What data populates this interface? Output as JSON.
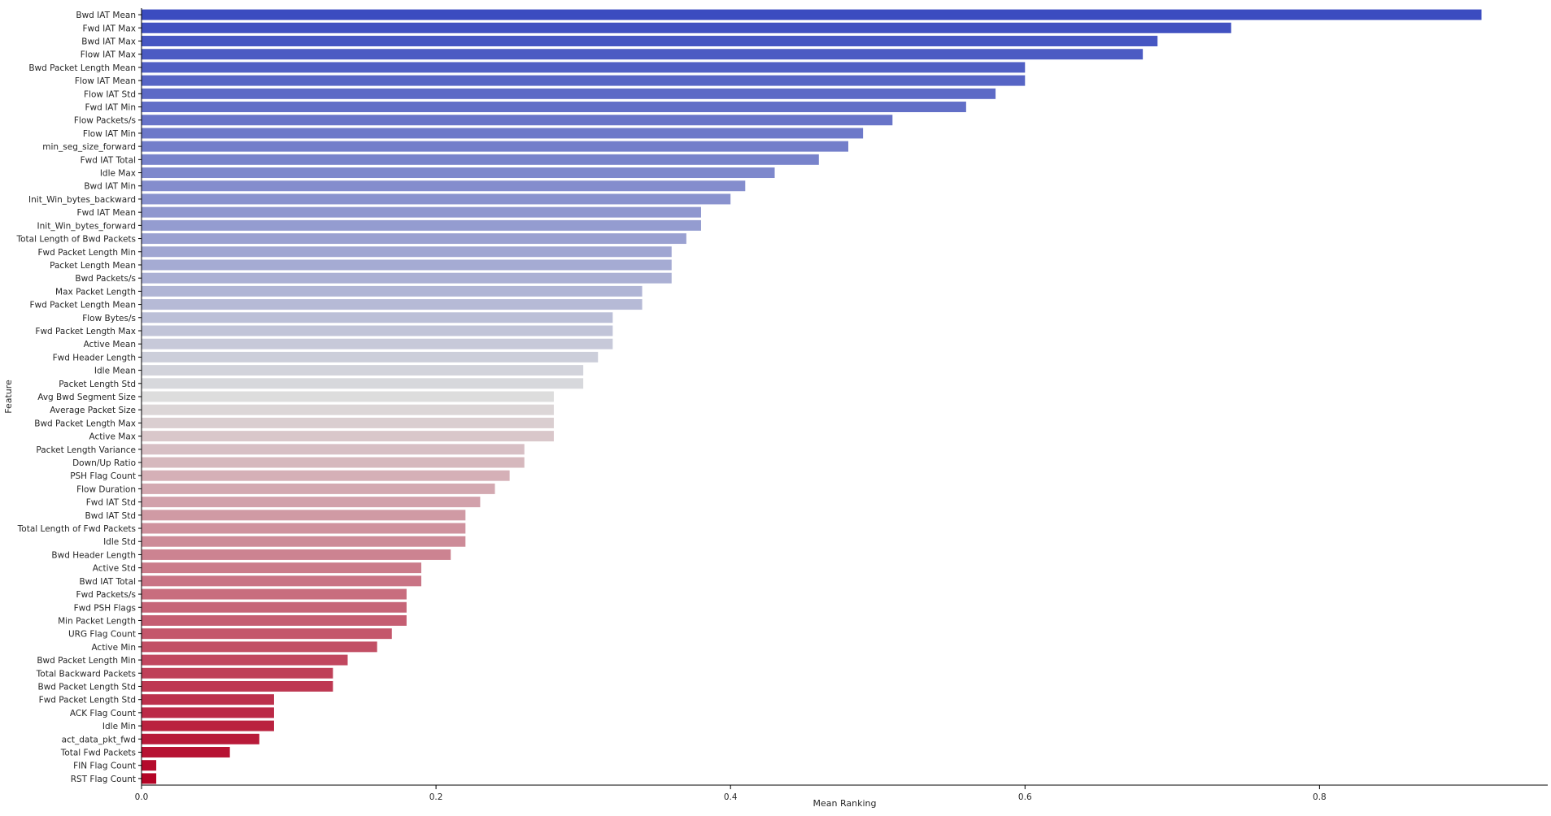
{
  "chart_data": {
    "type": "bar",
    "orientation": "horizontal",
    "xlabel": "Mean Ranking",
    "ylabel": "Feature",
    "xlim": [
      0,
      0.955
    ],
    "xticks": [
      0,
      0.2,
      0.4,
      0.6,
      0.8
    ],
    "xtick_labels": [
      "0.0",
      "0.2",
      "0.4",
      "0.6",
      "0.8"
    ],
    "grid": false,
    "palette": "coolwarm",
    "palette_start": "#3b4cc0",
    "palette_mid": "#dddddd",
    "palette_end": "#b40426",
    "categories": [
      "Bwd IAT Mean",
      "Fwd IAT Max",
      "Bwd IAT Max",
      "Flow IAT Max",
      "Bwd Packet Length Mean",
      "Flow IAT Mean",
      "Flow IAT Std",
      "Fwd IAT Min",
      "Flow Packets/s",
      "Flow IAT Min",
      "min_seg_size_forward",
      "Fwd IAT Total",
      "Idle Max",
      "Bwd IAT Min",
      "Init_Win_bytes_backward",
      "Fwd IAT Mean",
      "Init_Win_bytes_forward",
      "Total Length of Bwd Packets",
      "Fwd Packet Length Min",
      "Packet Length Mean",
      "Bwd Packets/s",
      "Max Packet Length",
      "Fwd Packet Length Mean",
      "Flow Bytes/s",
      "Fwd Packet Length Max",
      "Active Mean",
      "Fwd Header Length",
      "Idle Mean",
      "Packet Length Std",
      "Avg Bwd Segment Size",
      "Average Packet Size",
      "Bwd Packet Length Max",
      "Active Max",
      "Packet Length Variance",
      "Down/Up Ratio",
      "PSH Flag Count",
      "Flow Duration",
      "Fwd IAT Std",
      "Bwd IAT Std",
      "Total Length of Fwd Packets",
      "Idle Std",
      "Bwd Header Length",
      "Active Std",
      "Bwd IAT Total",
      "Fwd Packets/s",
      "Fwd PSH Flags",
      "Min Packet Length",
      "URG Flag Count",
      "Active Min",
      "Bwd Packet Length Min",
      "Total Backward Packets",
      "Bwd Packet Length Std",
      "Fwd Packet Length Std",
      "ACK Flag Count",
      "Idle Min",
      "act_data_pkt_fwd",
      "Total Fwd Packets",
      "FIN Flag Count",
      "RST Flag Count"
    ],
    "values": [
      0.91,
      0.74,
      0.69,
      0.68,
      0.6,
      0.6,
      0.58,
      0.56,
      0.51,
      0.49,
      0.48,
      0.46,
      0.43,
      0.41,
      0.4,
      0.38,
      0.38,
      0.37,
      0.36,
      0.36,
      0.36,
      0.34,
      0.34,
      0.32,
      0.32,
      0.32,
      0.31,
      0.3,
      0.3,
      0.28,
      0.28,
      0.28,
      0.28,
      0.26,
      0.26,
      0.25,
      0.24,
      0.23,
      0.22,
      0.22,
      0.22,
      0.21,
      0.19,
      0.19,
      0.18,
      0.18,
      0.18,
      0.17,
      0.16,
      0.14,
      0.13,
      0.13,
      0.09,
      0.09,
      0.09,
      0.08,
      0.06,
      0.01,
      0.01
    ]
  }
}
